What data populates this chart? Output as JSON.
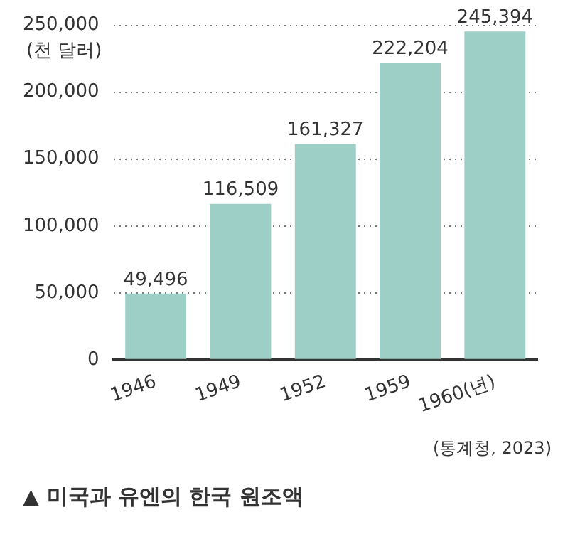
{
  "chart_data": {
    "type": "bar",
    "title": "▲ 미국과 유엔의 한국 원조액",
    "ylabel": "(천 달러)",
    "categories": [
      "1946",
      "1949",
      "1952",
      "1959",
      "1960(년)"
    ],
    "values": [
      49496,
      116509,
      161327,
      222204,
      245394
    ],
    "value_labels": [
      "49,496",
      "116,509",
      "161,327",
      "222,204",
      "245,394"
    ],
    "color": "#9dcfc7",
    "ylim": [
      0,
      250000
    ],
    "yticks": [
      {
        "value": 0,
        "label": "0"
      },
      {
        "value": 50000,
        "label": "50,000"
      },
      {
        "value": 100000,
        "label": "100,000"
      },
      {
        "value": 150000,
        "label": "150,000"
      },
      {
        "value": 200000,
        "label": "200,000"
      },
      {
        "value": 250000,
        "label": "250,000"
      }
    ],
    "grid": "y",
    "legend": false,
    "annotations": [
      "(통계청, 2023)"
    ]
  }
}
